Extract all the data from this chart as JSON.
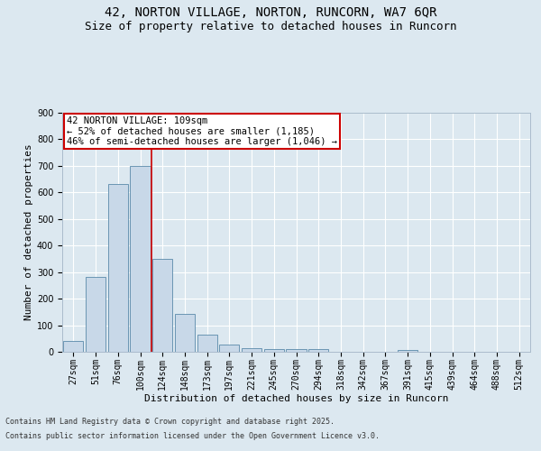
{
  "title_line1": "42, NORTON VILLAGE, NORTON, RUNCORN, WA7 6QR",
  "title_line2": "Size of property relative to detached houses in Runcorn",
  "xlabel": "Distribution of detached houses by size in Runcorn",
  "ylabel": "Number of detached properties",
  "footer_line1": "Contains HM Land Registry data © Crown copyright and database right 2025.",
  "footer_line2": "Contains public sector information licensed under the Open Government Licence v3.0.",
  "bar_labels": [
    "27sqm",
    "51sqm",
    "76sqm",
    "100sqm",
    "124sqm",
    "148sqm",
    "173sqm",
    "197sqm",
    "221sqm",
    "245sqm",
    "270sqm",
    "294sqm",
    "318sqm",
    "342sqm",
    "367sqm",
    "391sqm",
    "415sqm",
    "439sqm",
    "464sqm",
    "488sqm",
    "512sqm"
  ],
  "bar_values": [
    40,
    283,
    632,
    700,
    350,
    143,
    65,
    28,
    13,
    10,
    10,
    10,
    0,
    0,
    0,
    7,
    0,
    0,
    0,
    0,
    0
  ],
  "bar_color": "#c8d8e8",
  "bar_edge_color": "#5a8aaa",
  "vline_x": 3.5,
  "vline_color": "#cc0000",
  "annotation_text": "42 NORTON VILLAGE: 109sqm\n← 52% of detached houses are smaller (1,185)\n46% of semi-detached houses are larger (1,046) →",
  "annotation_box_color": "#cc0000",
  "annotation_box_facecolor": "white",
  "ylim": [
    0,
    900
  ],
  "yticks": [
    0,
    100,
    200,
    300,
    400,
    500,
    600,
    700,
    800,
    900
  ],
  "bg_color": "#dce8f0",
  "plot_bg_color": "#dce8f0",
  "grid_color": "white",
  "title_fontsize": 10,
  "subtitle_fontsize": 9,
  "axis_label_fontsize": 8,
  "tick_fontsize": 7,
  "annotation_fontsize": 7.5
}
